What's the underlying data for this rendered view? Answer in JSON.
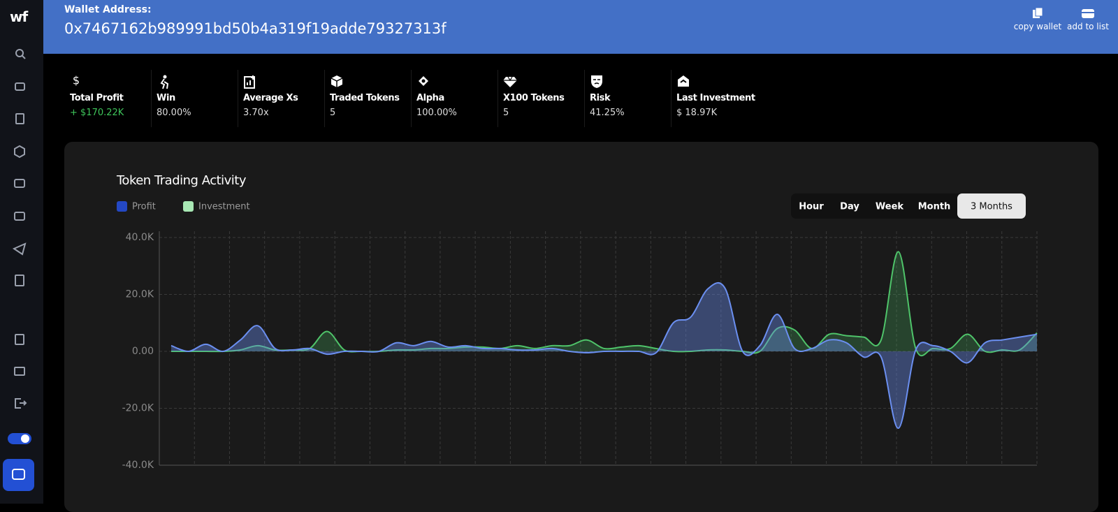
{
  "header": {
    "logo": "wf",
    "wallet_label": "Wallet Address:",
    "address": "0x7467162b989991bd50b4a319f19adde79327313f",
    "actions": [
      "copy wallet",
      "add to list"
    ]
  },
  "stats": [
    {
      "label": "Total Profit",
      "value": "+ $170.22K"
    },
    {
      "label": "Win",
      "value": "80.00%"
    },
    {
      "label": "Average Xs",
      "value": "3.70x"
    },
    {
      "label": "Traded Tokens",
      "value": "5"
    },
    {
      "label": "Alpha",
      "value": "100.00%"
    },
    {
      "label": "X100 Tokens",
      "value": "5"
    },
    {
      "label": "Risk",
      "value": "41.25%"
    },
    {
      "label": "Last Investment",
      "value": "$ 18.97K"
    }
  ],
  "chart_data": {
    "type": "line",
    "title": "Token Trading Activity",
    "series": [
      {
        "name": "Profit",
        "color": "#6b8ff0",
        "legend_color": "#2448c4",
        "values": [
          2000,
          0,
          2500,
          0,
          4000,
          9000,
          1000,
          500,
          1000,
          -1000,
          0,
          0,
          0,
          3000,
          2000,
          3500,
          1500,
          2000,
          1000,
          1000,
          500,
          500,
          1000,
          0,
          -500,
          0,
          0,
          0,
          -500,
          10000,
          12000,
          22000,
          22000,
          0,
          2000,
          13000,
          1000,
          1000,
          4000,
          3000,
          -2000,
          -2000,
          -27000,
          500,
          2000,
          0,
          -4000,
          3000,
          4000,
          5000,
          6000
        ]
      },
      {
        "name": "Investment",
        "color": "#4fc46a",
        "legend_color": "#a8e8b4",
        "values": [
          0,
          0,
          0,
          0,
          500,
          2000,
          500,
          500,
          1000,
          7000,
          500,
          0,
          0,
          500,
          500,
          1000,
          1000,
          1500,
          1500,
          1000,
          2000,
          1000,
          2000,
          2000,
          4000,
          1000,
          1500,
          2000,
          1000,
          0,
          0,
          500,
          500,
          0,
          0,
          8000,
          7500,
          1000,
          6000,
          5500,
          5000,
          4000,
          35000,
          1000,
          1000,
          1000,
          6000,
          0,
          500,
          500,
          6500
        ]
      }
    ],
    "ylim": [
      -40000,
      40000
    ],
    "yticks": [
      {
        "value": -40000,
        "label": "-40.0K"
      },
      {
        "value": -20000,
        "label": "-20.0K"
      },
      {
        "value": 0,
        "label": "0.00"
      },
      {
        "value": 20000,
        "label": "20.0K"
      },
      {
        "value": 40000,
        "label": "40.0K"
      }
    ],
    "grid": true,
    "time_ranges": [
      "Hour",
      "Day",
      "Week",
      "Month",
      "3 Months"
    ],
    "active_range": 4
  }
}
